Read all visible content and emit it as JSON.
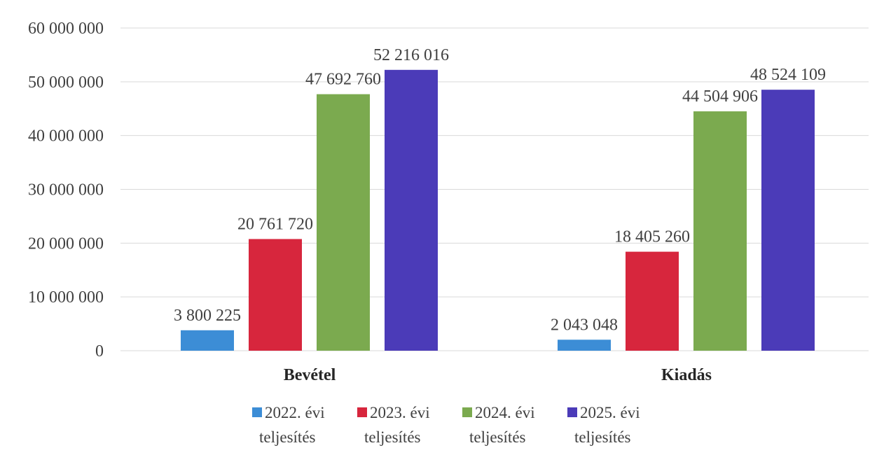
{
  "chart_data": {
    "type": "bar",
    "categories": [
      "Bevétel",
      "Kiadás"
    ],
    "series": [
      {
        "name": "2022. évi teljesítés",
        "legend_lines": [
          "2022. évi",
          "teljesítés"
        ],
        "color": "#3C8DD6",
        "values": [
          3800225,
          2043048
        ],
        "value_labels": [
          "3 800 225",
          "2 043 048"
        ]
      },
      {
        "name": "2023. évi teljesítés",
        "legend_lines": [
          "2023. évi",
          "teljesítés"
        ],
        "color": "#D7263D",
        "values": [
          20761720,
          18405260
        ],
        "value_labels": [
          "20 761 720",
          "18 405 260"
        ]
      },
      {
        "name": "2024. évi teljesítés",
        "legend_lines": [
          "2024. évi",
          "teljesítés"
        ],
        "color": "#7BAA4F",
        "values": [
          47692760,
          44504906
        ],
        "value_labels": [
          "47 692 760",
          "44 504 906"
        ]
      },
      {
        "name": "2025. évi teljesítés",
        "legend_lines": [
          "2025. évi",
          "teljesítés"
        ],
        "color": "#4B3BB8",
        "values": [
          52216016,
          48524109
        ],
        "value_labels": [
          "52 216 016",
          "48 524 109"
        ]
      }
    ],
    "y_ticks": [
      0,
      10000000,
      20000000,
      30000000,
      40000000,
      50000000,
      60000000
    ],
    "y_tick_labels": [
      "0",
      "10 000 000",
      "20 000 000",
      "30 000 000",
      "40 000 000",
      "50 000 000",
      "60 000 000"
    ],
    "ylim": [
      0,
      60000000
    ],
    "title": "",
    "xlabel": "",
    "ylabel": "",
    "grid": true,
    "legend": "bottom",
    "gridline_color": "#d9d9d9"
  }
}
